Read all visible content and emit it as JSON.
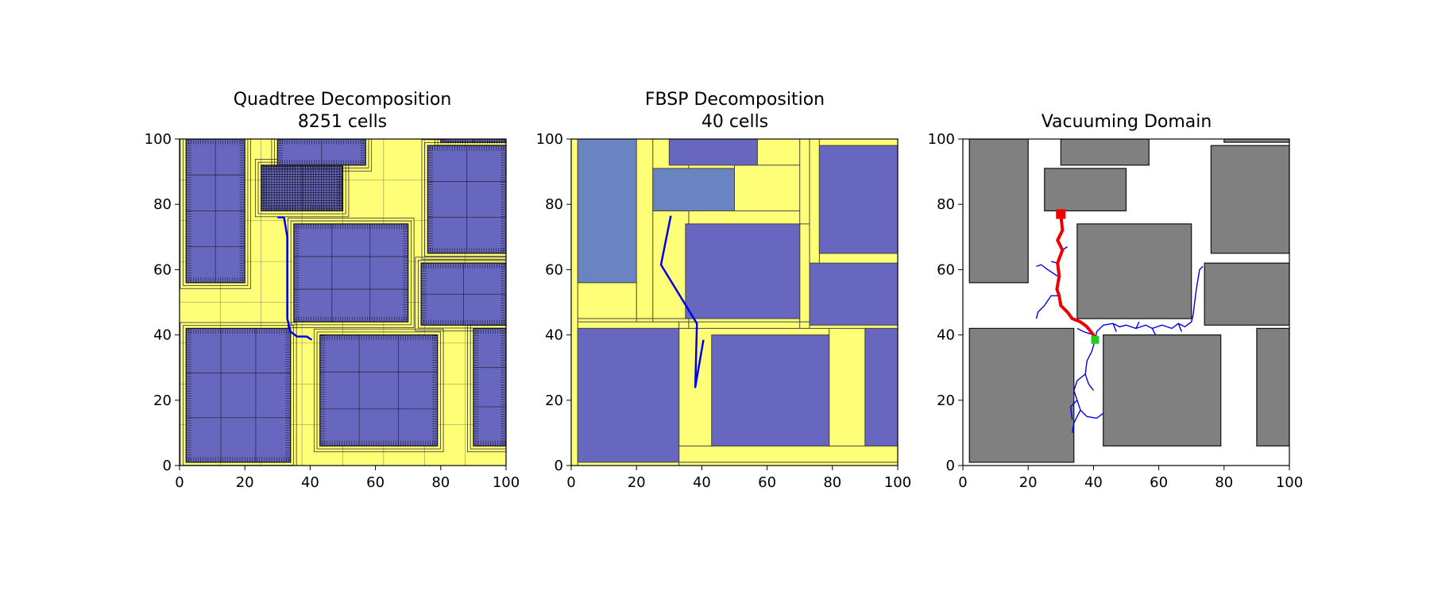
{
  "figure": {
    "panels": [
      {
        "title_line1": "Quadtree Decomposition",
        "title_line2": "8251 cells"
      },
      {
        "title_line1": "FBSP Decomposition",
        "title_line2": "40 cells"
      },
      {
        "title_line1": "",
        "title_line2": "Vacuuming Domain"
      }
    ]
  },
  "colors": {
    "free_cell": "#ffff77",
    "obstacle_cell": "#6767bf",
    "merged_cell": "#6a84c1",
    "obstacle_gray": "#808080",
    "path_blue": "#0000ee",
    "path_red": "#ee0000",
    "goal_green": "#22cc22"
  },
  "chart_data": [
    {
      "type": "heatmap",
      "title": "Quadtree Decomposition\n8251 cells",
      "xlim": [
        0,
        100
      ],
      "ylim": [
        0,
        100
      ],
      "xticks": [
        0,
        20,
        40,
        60,
        80,
        100
      ],
      "yticks": [
        0,
        20,
        40,
        60,
        80,
        100
      ],
      "cell_count": 8251,
      "obstacles": [
        [
          2,
          56,
          20,
          100
        ],
        [
          30,
          92,
          57,
          100
        ],
        [
          25,
          78,
          50,
          92
        ],
        [
          76,
          65,
          100,
          98
        ],
        [
          35,
          44,
          70,
          74
        ],
        [
          74,
          43,
          100,
          62
        ],
        [
          2,
          1,
          34,
          42
        ],
        [
          43,
          6,
          79,
          40
        ],
        [
          90,
          6,
          100,
          42
        ],
        [
          80,
          99,
          100,
          100
        ]
      ],
      "path": [
        [
          30,
          76
        ],
        [
          32,
          76
        ],
        [
          33,
          70
        ],
        [
          33,
          62
        ],
        [
          33,
          54
        ],
        [
          33,
          45
        ],
        [
          34,
          41
        ],
        [
          36,
          39.5
        ],
        [
          39,
          39.5
        ],
        [
          40.5,
          38.5
        ]
      ]
    },
    {
      "type": "heatmap",
      "title": "FBSP Decomposition\n40 cells",
      "xlim": [
        0,
        100
      ],
      "ylim": [
        0,
        100
      ],
      "xticks": [
        0,
        20,
        40,
        60,
        80,
        100
      ],
      "yticks": [
        0,
        20,
        40,
        60,
        80,
        100
      ],
      "cell_count": 40,
      "obstacles": [
        [
          2,
          1,
          33,
          42
        ],
        [
          43,
          6,
          79,
          40
        ],
        [
          90,
          6,
          100,
          42
        ],
        [
          35,
          45,
          70,
          74
        ],
        [
          73,
          43,
          100,
          62
        ],
        [
          76,
          65,
          100,
          98
        ],
        [
          30,
          92,
          57,
          100
        ]
      ],
      "merged_obstacles": [
        [
          2,
          56,
          20,
          100
        ],
        [
          25,
          78,
          50,
          91
        ]
      ],
      "path": [
        [
          30.5,
          76.5
        ],
        [
          27.5,
          61.5
        ],
        [
          38.5,
          43.5
        ],
        [
          38,
          24
        ],
        [
          40.5,
          38.5
        ]
      ]
    },
    {
      "type": "scatter",
      "title": "Vacuuming Domain",
      "xlim": [
        0,
        100
      ],
      "ylim": [
        0,
        100
      ],
      "xticks": [
        0,
        20,
        40,
        60,
        80,
        100
      ],
      "yticks": [
        0,
        20,
        40,
        60,
        80,
        100
      ],
      "obstacles": [
        [
          2,
          56,
          20,
          100
        ],
        [
          30,
          92,
          57,
          100
        ],
        [
          25,
          78,
          50,
          91
        ],
        [
          76,
          65,
          100,
          98
        ],
        [
          35,
          45,
          70,
          74
        ],
        [
          74,
          43,
          100,
          62
        ],
        [
          2,
          1,
          34,
          42
        ],
        [
          43,
          6,
          79,
          40
        ],
        [
          90,
          6,
          100,
          42
        ],
        [
          80,
          99,
          100,
          100
        ]
      ],
      "red_path": [
        [
          30,
          77
        ],
        [
          30.5,
          72
        ],
        [
          29,
          69
        ],
        [
          30.5,
          66
        ],
        [
          29,
          62
        ],
        [
          29.5,
          58
        ],
        [
          28.8,
          54
        ],
        [
          29.5,
          52
        ],
        [
          30,
          49
        ],
        [
          32,
          47
        ],
        [
          33.5,
          45
        ],
        [
          36,
          44
        ],
        [
          38,
          42.5
        ],
        [
          40,
          40
        ],
        [
          40.5,
          38.5
        ]
      ],
      "start": [
        30,
        77
      ],
      "goal": [
        40.5,
        38.5
      ]
    }
  ]
}
